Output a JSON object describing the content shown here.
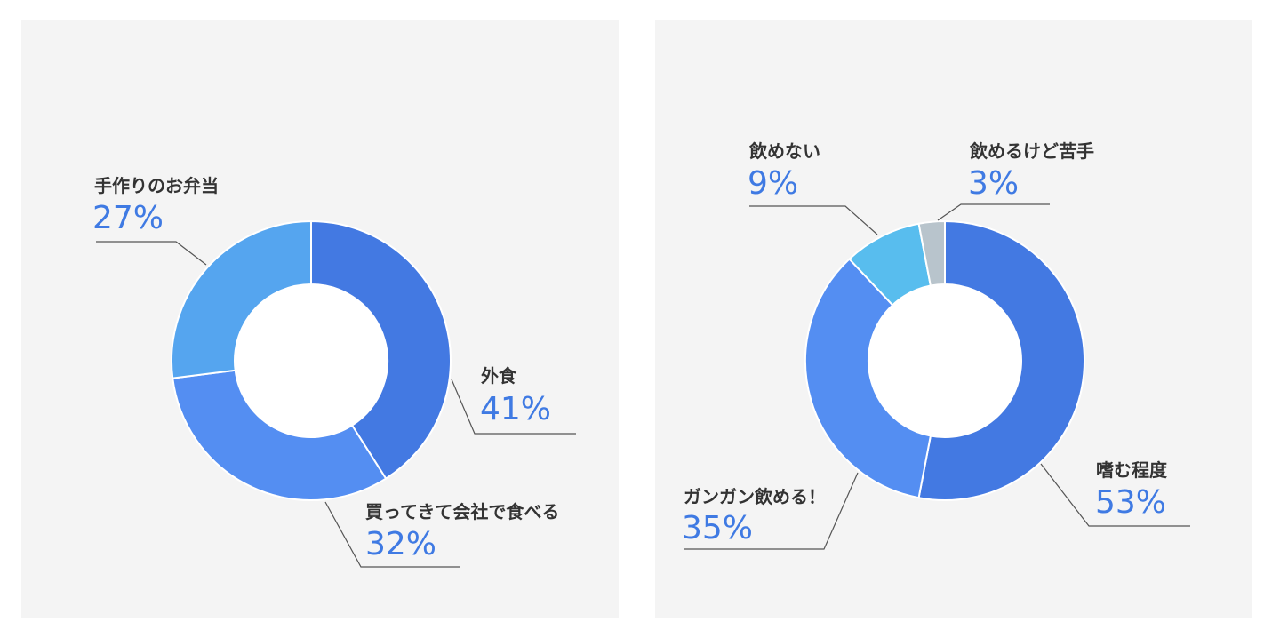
{
  "chart_data": [
    {
      "type": "pie",
      "slices": [
        {
          "label": "外食",
          "value": 41,
          "value_text": "41%",
          "color": "#4379e2"
        },
        {
          "label": "買ってきて会社で食べる",
          "value": 32,
          "value_text": "32%",
          "color": "#548ef2"
        },
        {
          "label": "手作りのお弁当",
          "value": 27,
          "value_text": "27%",
          "color": "#55a5ef"
        }
      ],
      "label_color": "#333333",
      "percent_color": "#3f7ae3",
      "background": "#f4f4f4"
    },
    {
      "type": "pie",
      "slices": [
        {
          "label": "嗜む程度",
          "value": 53,
          "value_text": "53%",
          "color": "#4379e2"
        },
        {
          "label": "ガンガン飲める！",
          "value": 35,
          "value_text": "35%",
          "color": "#548ef2"
        },
        {
          "label": "飲めない",
          "value": 9,
          "value_text": "9%",
          "color": "#58bdee"
        },
        {
          "label": "飲めるけど苦手",
          "value": 3,
          "value_text": "3%",
          "color": "#b8c4cc"
        }
      ],
      "label_color": "#333333",
      "percent_color": "#3f7ae3",
      "background": "#f4f4f4"
    }
  ]
}
